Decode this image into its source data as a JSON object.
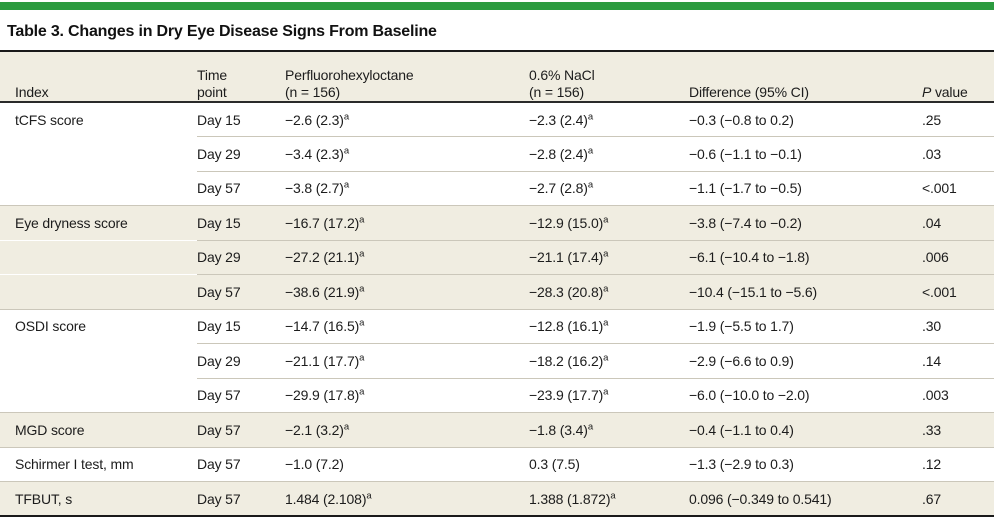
{
  "title": "Table 3. Changes in Dry Eye Disease Signs From Baseline",
  "colors": {
    "accent_green": "#2b9b3f",
    "row_shade_beige": "#f0ede1",
    "divider_gray": "#cbc7ba",
    "rule_black": "#1a1a1a"
  },
  "table": {
    "headers": [
      {
        "lines": [
          "Index"
        ]
      },
      {
        "lines": [
          "Time",
          "point"
        ]
      },
      {
        "lines": [
          "Perfluorohexyloctane",
          "(n = 156)"
        ]
      },
      {
        "lines": [
          "0.6% NaCl",
          "(n = 156)"
        ]
      },
      {
        "lines": [
          "Difference (95% CI)"
        ]
      },
      {
        "lines": [
          "P value"
        ],
        "italic_first": true
      }
    ],
    "rows": [
      {
        "group": 1,
        "index": "tCFS score",
        "time": "Day 15",
        "drug": "−2.6 (2.3)",
        "drug_sup": "a",
        "nacl": "−2.3 (2.4)",
        "nacl_sup": "a",
        "diff": "−0.3 (−0.8 to 0.2)",
        "p": ".25"
      },
      {
        "group": 1,
        "index": "",
        "time": "Day 29",
        "drug": "−3.4 (2.3)",
        "drug_sup": "a",
        "nacl": "−2.8 (2.4)",
        "nacl_sup": "a",
        "diff": "−0.6 (−1.1 to −0.1)",
        "p": ".03"
      },
      {
        "group": 1,
        "index": "",
        "time": "Day 57",
        "drug": "−3.8 (2.7)",
        "drug_sup": "a",
        "nacl": "−2.7 (2.8)",
        "nacl_sup": "a",
        "diff": "−1.1 (−1.7 to −0.5)",
        "p": "<.001"
      },
      {
        "group": 2,
        "index": "Eye dryness score",
        "time": "Day 15",
        "drug": "−16.7 (17.2)",
        "drug_sup": "a",
        "nacl": "−12.9 (15.0)",
        "nacl_sup": "a",
        "diff": "−3.8 (−7.4 to −0.2)",
        "p": ".04"
      },
      {
        "group": 2,
        "index": "",
        "time": "Day 29",
        "drug": "−27.2 (21.1)",
        "drug_sup": "a",
        "nacl": "−21.1 (17.4)",
        "nacl_sup": "a",
        "diff": "−6.1 (−10.4 to −1.8)",
        "p": ".006"
      },
      {
        "group": 2,
        "index": "",
        "time": "Day 57",
        "drug": "−38.6 (21.9)",
        "drug_sup": "a",
        "nacl": "−28.3 (20.8)",
        "nacl_sup": "a",
        "diff": "−10.4 (−15.1 to −5.6)",
        "p": "<.001"
      },
      {
        "group": 3,
        "index": "OSDI score",
        "time": "Day 15",
        "drug": "−14.7 (16.5)",
        "drug_sup": "a",
        "nacl": "−12.8 (16.1)",
        "nacl_sup": "a",
        "diff": "−1.9 (−5.5 to 1.7)",
        "p": ".30"
      },
      {
        "group": 3,
        "index": "",
        "time": "Day 29",
        "drug": "−21.1 (17.7)",
        "drug_sup": "a",
        "nacl": "−18.2 (16.2)",
        "nacl_sup": "a",
        "diff": "−2.9 (−6.6 to 0.9)",
        "p": ".14"
      },
      {
        "group": 3,
        "index": "",
        "time": "Day 57",
        "drug": "−29.9 (17.8)",
        "drug_sup": "a",
        "nacl": "−23.9 (17.7)",
        "nacl_sup": "a",
        "diff": "−6.0 (−10.0 to −2.0)",
        "p": ".003"
      },
      {
        "group": 4,
        "index": "MGD score",
        "time": "Day 57",
        "drug": "−2.1 (3.2)",
        "drug_sup": "a",
        "nacl": "−1.8 (3.4)",
        "nacl_sup": "a",
        "diff": "−0.4 (−1.1 to 0.4)",
        "p": ".33"
      },
      {
        "group": 5,
        "index": "Schirmer I test, mm",
        "time": "Day 57",
        "drug": "−1.0 (7.2)",
        "drug_sup": "",
        "nacl": "0.3 (7.5)",
        "nacl_sup": "",
        "diff": "−1.3 (−2.9 to 0.3)",
        "p": ".12"
      },
      {
        "group": 6,
        "index": "TFBUT, s",
        "time": "Day 57",
        "drug": "1.484 (2.108)",
        "drug_sup": "a",
        "nacl": "1.388 (1.872)",
        "nacl_sup": "a",
        "diff": "0.096 (−0.349 to 0.541)",
        "p": ".67"
      }
    ]
  }
}
